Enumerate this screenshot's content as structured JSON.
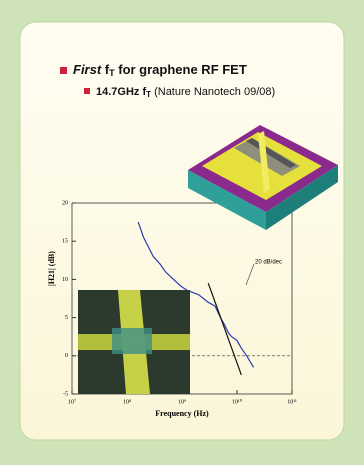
{
  "slide": {
    "bullets": [
      {
        "parts": [
          "First",
          " f",
          "T",
          " for graphene RF FET"
        ]
      },
      {
        "parts": [
          "14.7GHz f",
          "T",
          "  (Nature Nanotech 09/08)"
        ]
      }
    ]
  },
  "chart_data": {
    "type": "line",
    "xlabel": "Frequency (Hz)",
    "ylabel": "|H21| (dB)",
    "annotation": "20 dB/dec",
    "xscale": "log",
    "xlim": [
      10000000,
      100000000000
    ],
    "xticks": [
      {
        "value": 10000000,
        "label": "10⁷"
      },
      {
        "value": 100000000,
        "label": "10⁸"
      },
      {
        "value": 1000000000,
        "label": "10⁹"
      },
      {
        "value": 10000000000,
        "label": "10¹⁰"
      },
      {
        "value": 100000000000,
        "label": "10¹¹"
      }
    ],
    "ylim": [
      -5,
      20
    ],
    "yticks": [
      -5,
      0,
      5,
      10,
      15,
      20
    ],
    "reference_line": 0,
    "series": [
      {
        "color": "#2a3bb0",
        "x": [
          160000000,
          200000000,
          300000000,
          400000000,
          500000000,
          700000000,
          1000000000,
          1300000000,
          2000000000,
          3000000000,
          4000000000,
          5000000000,
          6000000000,
          7000000000,
          8000000000,
          10000000000,
          12000000000,
          15000000000,
          20000000000
        ],
        "values": [
          17.5,
          15.5,
          13,
          12,
          11,
          10,
          9,
          8.5,
          8,
          7,
          6.5,
          5,
          4,
          3,
          2.5,
          2,
          1,
          0,
          -1.5
        ]
      },
      {
        "color": "#111111",
        "x": [
          3000000000,
          12000000000
        ],
        "values": [
          9.5,
          -2.5
        ]
      }
    ]
  }
}
